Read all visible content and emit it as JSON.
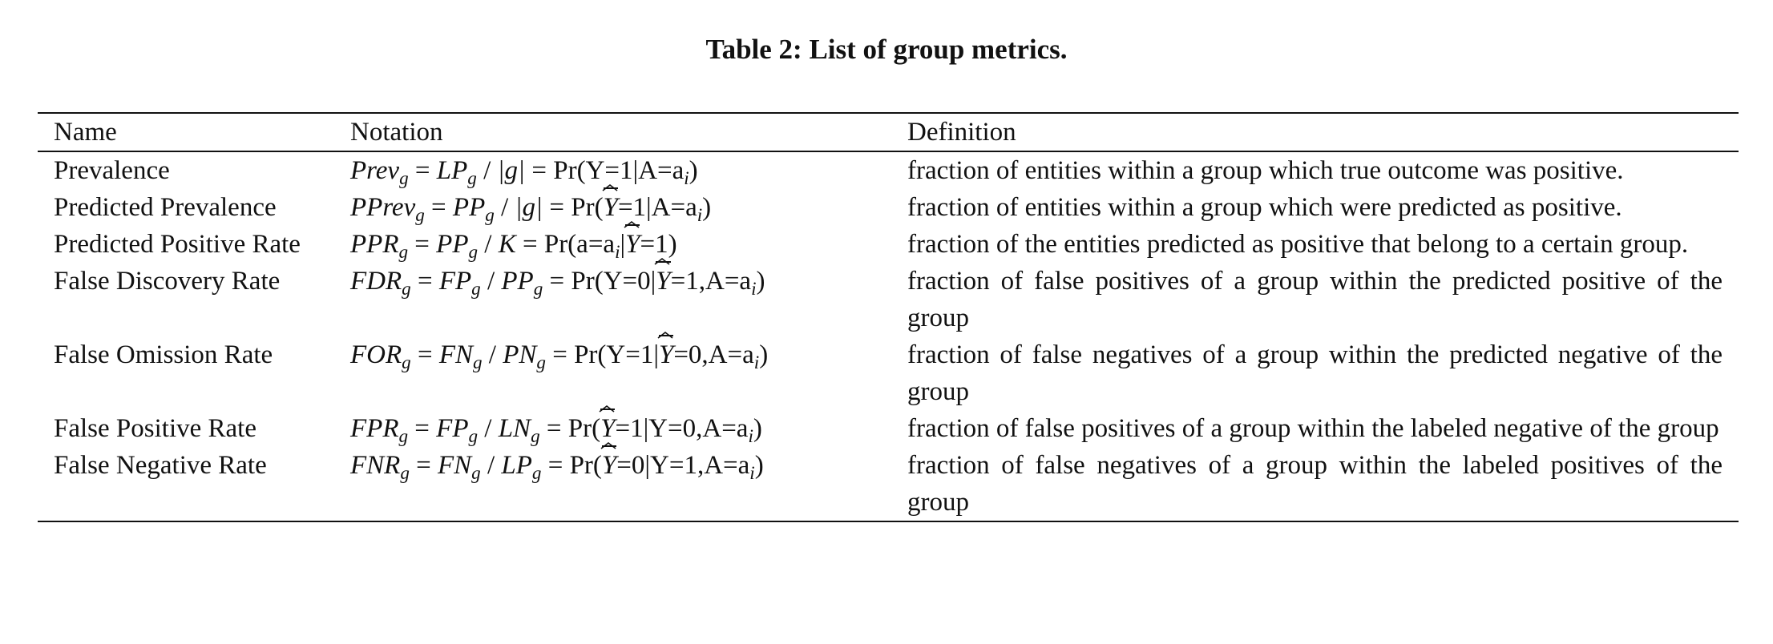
{
  "caption": "Table 2: List of group metrics.",
  "headers": {
    "name": "Name",
    "notation": "Notation",
    "definition": "Definition"
  },
  "rows": [
    {
      "name": "Prevalence",
      "definition": "fraction of entities within a group which true outcome was positive."
    },
    {
      "name": "Predicted Prevalence",
      "definition": "fraction of entities within a group which were predicted as positive."
    },
    {
      "name": "Predicted Positive Rate",
      "definition": "fraction of the entities predicted as positive that belong to a certain group."
    },
    {
      "name": "False Discovery Rate",
      "definition": "fraction of false positives of a group within the predicted positive of the group"
    },
    {
      "name": "False Omission Rate",
      "definition": "fraction of false negatives of a group within the predicted negative of the group"
    },
    {
      "name": "False Positive Rate",
      "definition": "fraction of false positives of a group within the labeled negative of the group"
    },
    {
      "name": "False Negative Rate",
      "definition": "fraction of false negatives of a group within the labeled positives of the group"
    }
  ],
  "notation": {
    "prev": {
      "lhs": "Prev",
      "a": "LP",
      "b": "|g|",
      "pr": "Pr(Y=1|A=a",
      "close": ")"
    },
    "pprev": {
      "lhs": "PPrev",
      "a": "PP",
      "b": "|g|",
      "pr_open": "Pr(",
      "pr_rest": "=1|A=a",
      "close": ")"
    },
    "ppr": {
      "lhs": "PPR",
      "a": "PP",
      "b": "K",
      "pr_open": "Pr(a=a",
      "pr_mid": "|",
      "pr_rest": "=1)"
    },
    "fdr": {
      "lhs": "FDR",
      "a": "FP",
      "b": "PP",
      "pr_open": "Pr(Y=0|",
      "pr_rest": "=1,A=a",
      "close": ")"
    },
    "for": {
      "lhs": "FOR",
      "a": "FN",
      "b": "PN",
      "pr_open": "Pr(Y=1|",
      "pr_rest": "=0,A=a",
      "close": ")"
    },
    "fpr": {
      "lhs": "FPR",
      "a": "FP",
      "b": "LN",
      "pr_open": "Pr(",
      "pr_rest": "=1|Y=0,A=a",
      "close": ")"
    },
    "fnr": {
      "lhs": "FNR",
      "a": "FN",
      "b": "LP",
      "pr_open": "Pr(",
      "pr_rest": "=0|Y=1,A=a",
      "close": ")"
    },
    "g": "g",
    "i": "i",
    "yhat": "Y",
    "eq": "=",
    "slash": "/"
  }
}
